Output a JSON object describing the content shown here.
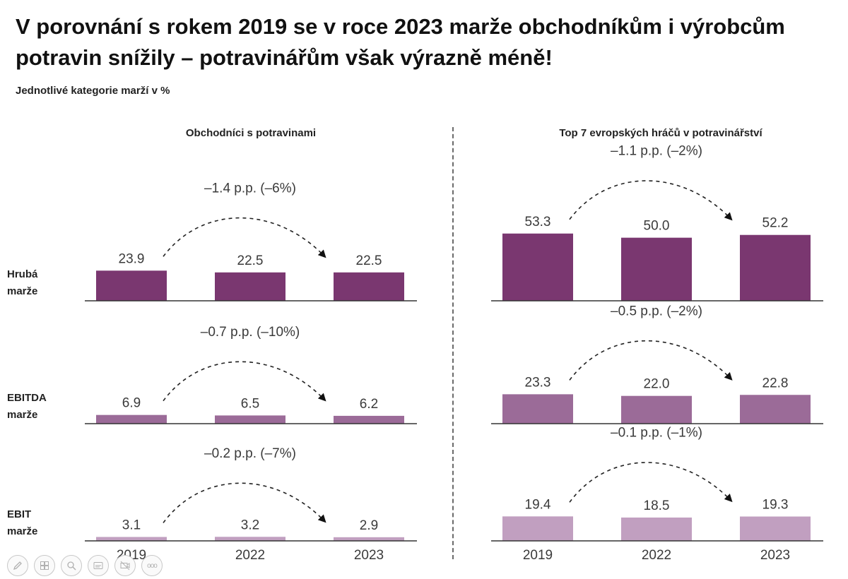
{
  "title": "V porovnání s rokem 2019 se v roce 2023 marže obchodníkům i výrobcům potravin snížily – potravinářům však výrazně méně!",
  "subtitle": "Jednotlivé kategorie marží v %",
  "toolbar": {
    "icons": [
      "pen-icon",
      "slides-icon",
      "zoom-icon",
      "subtitles-icon",
      "camera-off-icon",
      "more-icon"
    ],
    "more_label": "ooo"
  },
  "chart_data": {
    "type": "bar",
    "categories": [
      "2019",
      "2022",
      "2023"
    ],
    "rows": [
      {
        "label_line1": "Hrubá",
        "label_line2": "marže",
        "color": "#7a3770"
      },
      {
        "label_line1": "EBITDA",
        "label_line2": "marže",
        "color": "#9b6b98"
      },
      {
        "label_line1": "EBIT",
        "label_line2": "marže",
        "color": "#c19fc0"
      }
    ],
    "panels": [
      {
        "title": "Obchodníci s potravinami",
        "series": [
          {
            "values": [
              23.9,
              22.5,
              22.5
            ],
            "labels": [
              "23.9",
              "22.5",
              "22.5"
            ],
            "change": "–1.4 p.p. (–6%)"
          },
          {
            "values": [
              6.9,
              6.5,
              6.2
            ],
            "labels": [
              "6.9",
              "6.5",
              "6.2"
            ],
            "change": "–0.7 p.p. (–10%)"
          },
          {
            "values": [
              3.1,
              3.2,
              2.9
            ],
            "labels": [
              "3.1",
              "3.2",
              "2.9"
            ],
            "change": "–0.2 p.p. (–7%)"
          }
        ]
      },
      {
        "title": "Top 7 evropských hráčů v potravinářství",
        "series": [
          {
            "values": [
              53.3,
              50.0,
              52.2
            ],
            "labels": [
              "53.3",
              "50.0",
              "52.2"
            ],
            "change": "–1.1 p.p. (–2%)"
          },
          {
            "values": [
              23.3,
              22.0,
              22.8
            ],
            "labels": [
              "23.3",
              "22.0",
              "22.8"
            ],
            "change": "–0.5 p.p. (–2%)"
          },
          {
            "values": [
              19.4,
              18.5,
              19.3
            ],
            "labels": [
              "19.4",
              "18.5",
              "19.3"
            ],
            "change": "–0.1 p.p. (–1%)"
          }
        ]
      }
    ]
  }
}
